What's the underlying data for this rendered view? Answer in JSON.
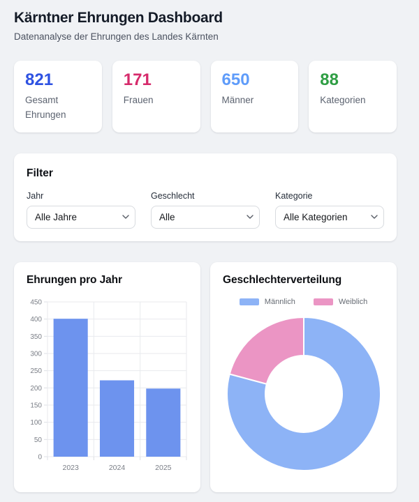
{
  "header": {
    "title": "Kärntner Ehrungen Dashboard",
    "subtitle": "Datenanalyse der Ehrungen des Landes Kärnten"
  },
  "stats": [
    {
      "value": "821",
      "label": "Gesamt Ehrungen",
      "color": "#2e52e2"
    },
    {
      "value": "171",
      "label": "Frauen",
      "color": "#d62a6b"
    },
    {
      "value": "650",
      "label": "Männer",
      "color": "#5f9cfa"
    },
    {
      "value": "88",
      "label": "Kategorien",
      "color": "#2f9e44"
    }
  ],
  "filter": {
    "heading": "Filter",
    "fields": [
      {
        "label": "Jahr",
        "value": "Alle Jahre"
      },
      {
        "label": "Geschlecht",
        "value": "Alle"
      },
      {
        "label": "Kategorie",
        "value": "Alle Kategorien"
      }
    ]
  },
  "icons": {
    "select_caret": "chevron-down"
  },
  "chart_data": [
    {
      "type": "bar",
      "title": "Ehrungen pro Jahr",
      "categories": [
        "2023",
        "2024",
        "2025"
      ],
      "values": [
        401,
        222,
        198
      ],
      "xlabel": "",
      "ylabel": "",
      "ylim": [
        0,
        450
      ],
      "ytick_step": 50,
      "grid": true,
      "bar_color": "#6d93ee",
      "grid_color": "#e8eaee",
      "tick_color": "#dcdfe4",
      "label_color": "#7a7e86"
    },
    {
      "type": "doughnut",
      "title": "Geschlechterverteilung",
      "labels": [
        "Männlich",
        "Weiblich"
      ],
      "values": [
        650,
        171
      ],
      "colors": [
        "#8db3f6",
        "#eb95c4"
      ],
      "legend_position": "top",
      "start_angle_deg": 0,
      "direction": "clockwise",
      "inner_radius_ratio": 0.5
    }
  ]
}
